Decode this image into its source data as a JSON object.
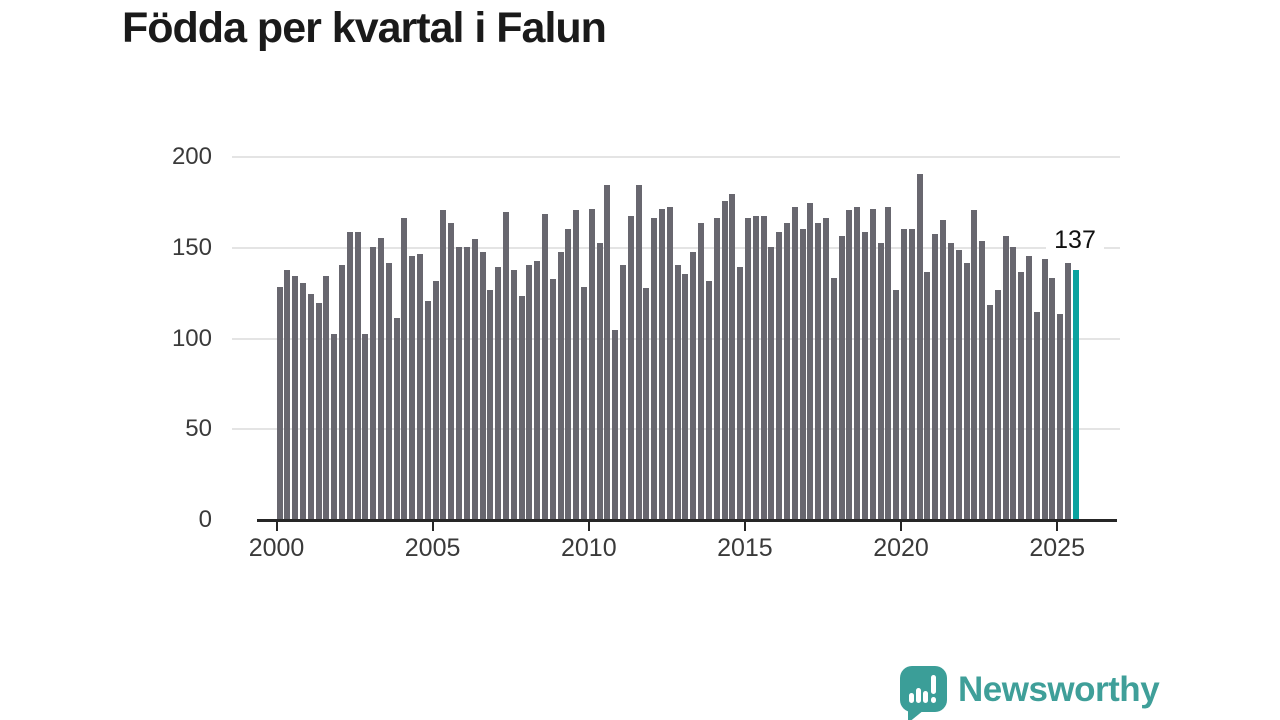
{
  "title": "Födda per kvartal i Falun",
  "annotation": {
    "value": "137"
  },
  "logo": {
    "text": "Newsworthy",
    "icon": "newsworthy-speech-bubble-bar-chart-icon"
  },
  "colors": {
    "bar": "#68676f",
    "highlight": "#0aa29e",
    "grid": "#e4e4e4",
    "axis": "#262626",
    "tick_text": "#3a3a3a",
    "title_text": "#1a1a1a",
    "logo_teal": "#3f9f99"
  },
  "y_axis": {
    "tick_labels": [
      "0",
      "50",
      "100",
      "150",
      "200"
    ],
    "tick_values": [
      0,
      50,
      100,
      150,
      200
    ]
  },
  "x_axis": {
    "tick_labels": [
      "2000",
      "2005",
      "2010",
      "2015",
      "2020",
      "2025"
    ]
  },
  "chart_data": {
    "type": "bar",
    "title": "Födda per kvartal i Falun",
    "xlabel": "",
    "ylabel": "",
    "ylim": [
      0,
      200
    ],
    "grid": "horizontal",
    "legend": "none",
    "highlight_index": 102,
    "highlight_value_label": "137",
    "categories": [
      "2000 Q1",
      "2000 Q2",
      "2000 Q3",
      "2000 Q4",
      "2001 Q1",
      "2001 Q2",
      "2001 Q3",
      "2001 Q4",
      "2002 Q1",
      "2002 Q2",
      "2002 Q3",
      "2002 Q4",
      "2003 Q1",
      "2003 Q2",
      "2003 Q3",
      "2003 Q4",
      "2004 Q1",
      "2004 Q2",
      "2004 Q3",
      "2004 Q4",
      "2005 Q1",
      "2005 Q2",
      "2005 Q3",
      "2005 Q4",
      "2006 Q1",
      "2006 Q2",
      "2006 Q3",
      "2006 Q4",
      "2007 Q1",
      "2007 Q2",
      "2007 Q3",
      "2007 Q4",
      "2008 Q1",
      "2008 Q2",
      "2008 Q3",
      "2008 Q4",
      "2009 Q1",
      "2009 Q2",
      "2009 Q3",
      "2009 Q4",
      "2010 Q1",
      "2010 Q2",
      "2010 Q3",
      "2010 Q4",
      "2011 Q1",
      "2011 Q2",
      "2011 Q3",
      "2011 Q4",
      "2012 Q1",
      "2012 Q2",
      "2012 Q3",
      "2012 Q4",
      "2013 Q1",
      "2013 Q2",
      "2013 Q3",
      "2013 Q4",
      "2014 Q1",
      "2014 Q2",
      "2014 Q3",
      "2014 Q4",
      "2015 Q1",
      "2015 Q2",
      "2015 Q3",
      "2015 Q4",
      "2016 Q1",
      "2016 Q2",
      "2016 Q3",
      "2016 Q4",
      "2017 Q1",
      "2017 Q2",
      "2017 Q3",
      "2017 Q4",
      "2018 Q1",
      "2018 Q2",
      "2018 Q3",
      "2018 Q4",
      "2019 Q1",
      "2019 Q2",
      "2019 Q3",
      "2019 Q4",
      "2020 Q1",
      "2020 Q2",
      "2020 Q3",
      "2020 Q4",
      "2021 Q1",
      "2021 Q2",
      "2021 Q3",
      "2021 Q4",
      "2022 Q1",
      "2022 Q2",
      "2022 Q3",
      "2022 Q4",
      "2023 Q1",
      "2023 Q2",
      "2023 Q3",
      "2023 Q4",
      "2024 Q1",
      "2024 Q2",
      "2024 Q3",
      "2024 Q4",
      "2025 Q1",
      "2025 Q2",
      "2025 Q3"
    ],
    "values": [
      128,
      137,
      134,
      130,
      124,
      119,
      134,
      102,
      140,
      158,
      158,
      102,
      150,
      155,
      141,
      111,
      166,
      145,
      146,
      120,
      131,
      170,
      163,
      150,
      150,
      154,
      147,
      126,
      139,
      169,
      137,
      123,
      140,
      142,
      168,
      132,
      147,
      160,
      170,
      128,
      171,
      152,
      184,
      104,
      140,
      167,
      184,
      127,
      166,
      171,
      172,
      140,
      135,
      147,
      163,
      131,
      166,
      175,
      179,
      139,
      166,
      167,
      167,
      150,
      158,
      163,
      172,
      160,
      174,
      163,
      166,
      133,
      156,
      170,
      172,
      158,
      171,
      152,
      172,
      126,
      160,
      160,
      190,
      136,
      157,
      165,
      152,
      148,
      141,
      170,
      153,
      118,
      126,
      156,
      150,
      136,
      145,
      114,
      143,
      133,
      113,
      141,
      137
    ]
  }
}
